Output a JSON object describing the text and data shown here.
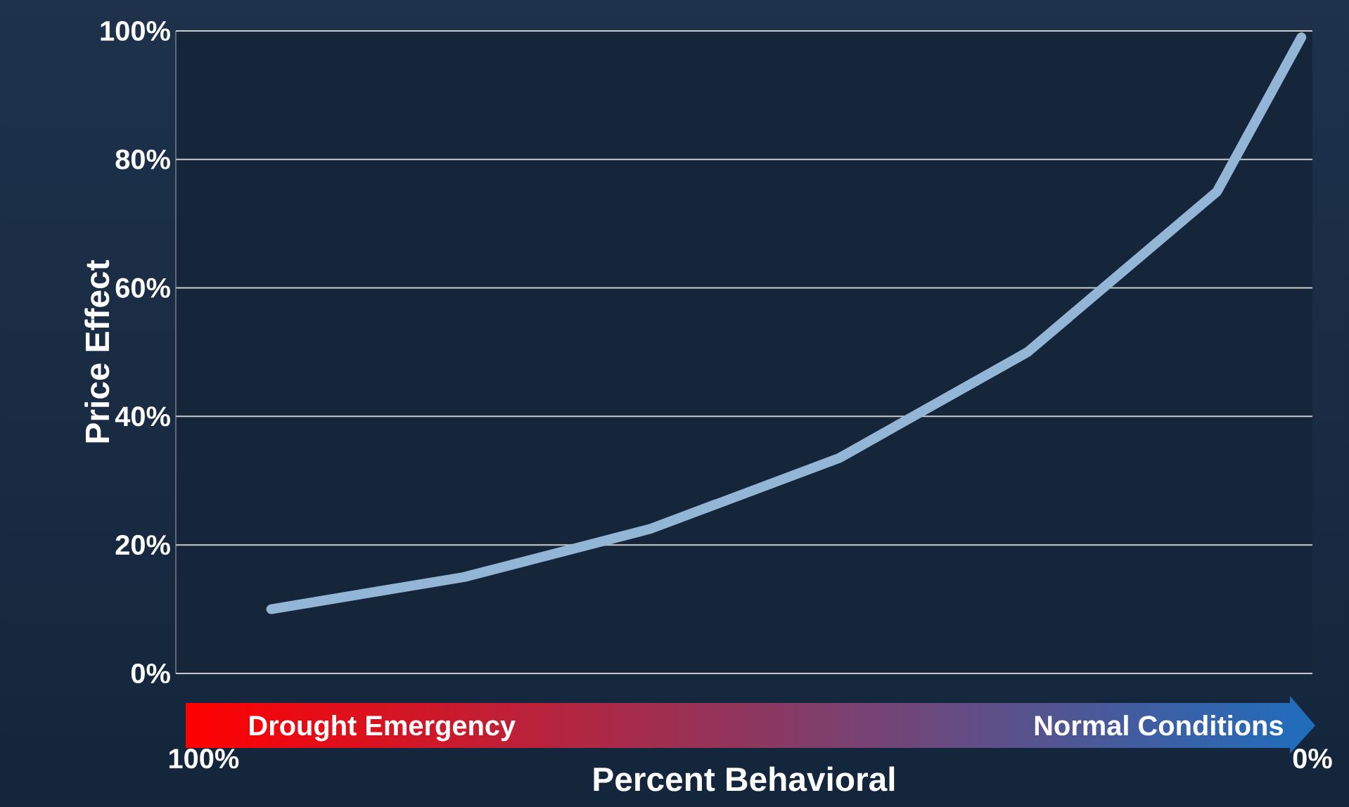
{
  "chart_data": {
    "type": "line",
    "xlabel": "Percent Behavioral",
    "ylabel": "Price Effect",
    "annotations": [
      "Drought Emergency",
      "Normal Conditions"
    ],
    "x": [
      93.9,
      76.5,
      59.7,
      42.7,
      25.7,
      8.6,
      1.0
    ],
    "series": [
      {
        "color": "#94b6d6",
        "values": [
          10,
          15,
          22.5,
          33.5,
          50,
          75,
          99
        ]
      }
    ],
    "xlim": [
      102.5,
      0
    ],
    "xticks": [
      {
        "value": 100,
        "label": "100%"
      },
      {
        "value": 0,
        "label": "0%"
      }
    ],
    "ylim": [
      0,
      100
    ],
    "yticks": [
      {
        "value": 0,
        "label": "0%"
      },
      {
        "value": 20,
        "label": "20%"
      },
      {
        "value": 40,
        "label": "40%"
      },
      {
        "value": 60,
        "label": "60%"
      },
      {
        "value": 80,
        "label": "80%"
      },
      {
        "value": 100,
        "label": "100%"
      }
    ],
    "grid": "y",
    "marker": "none",
    "line_style": "solid"
  }
}
